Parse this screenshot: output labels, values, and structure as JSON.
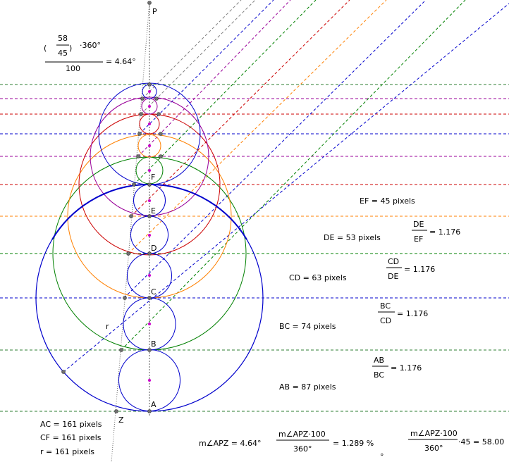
{
  "points": {
    "P": "P",
    "A": "A",
    "B": "B",
    "C": "C",
    "D": "D",
    "E": "E",
    "F": "F",
    "Z": "Z",
    "r": "r"
  },
  "formula_top": {
    "num": "58",
    "den": "45",
    "mult": "·360°",
    "divisor": "100",
    "result": "= 4.64°"
  },
  "lengths": {
    "EF": "EF = 45 pixels",
    "DE": "DE = 53 pixels",
    "CD": "CD = 63 pixels",
    "BC": "BC = 74 pixels",
    "AB": "AB = 87 pixels"
  },
  "ratios": [
    {
      "num": "DE",
      "den": "EF",
      "val": "= 1.176"
    },
    {
      "num": "CD",
      "den": "DE",
      "val": "= 1.176"
    },
    {
      "num": "BC",
      "den": "CD",
      "val": "= 1.176"
    },
    {
      "num": "AB",
      "den": "BC",
      "val": "= 1.176"
    }
  ],
  "bottom": {
    "AC": "AC = 161 pixels",
    "CF": "CF = 161 pixels",
    "r": "r = 161 pixels",
    "angle": "m∠APZ = 4.64°",
    "pct_num": "m∠APZ·100",
    "pct_den": "360°",
    "pct_val": "= 1.289 %",
    "mark": "°",
    "last_num": "m∠APZ·100",
    "last_den": "360°",
    "last_val": "·45 = 58.00"
  },
  "colors": {
    "blue": "#0000cc",
    "green": "#008000",
    "red": "#cc0000",
    "orange": "#ff8000",
    "purple": "#990099",
    "gray": "#808080",
    "darkgreen": "#2e7d32"
  }
}
